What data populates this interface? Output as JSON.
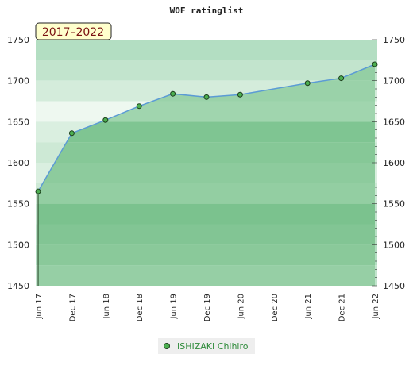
{
  "chart_data": {
    "type": "line",
    "title": "WOF ratinglist",
    "period_label": "2017–2022",
    "x": [
      "Jun 17",
      "Dec 17",
      "Jun 18",
      "Dec 18",
      "Jun 19",
      "Dec 19",
      "Jun 20",
      "Dec 20",
      "Jun 21",
      "Dec 21",
      "Jun 22"
    ],
    "series": [
      {
        "name": "ISHIZAKI Chihiro",
        "points": [
          {
            "x": "Jun 17",
            "y": 1565
          },
          {
            "x": "Dec 17",
            "y": 1636
          },
          {
            "x": "Jun 18",
            "y": 1652
          },
          {
            "x": "Dec 18",
            "y": 1669
          },
          {
            "x": "Jun 19",
            "y": 1684
          },
          {
            "x": "Dec 19",
            "y": 1680
          },
          {
            "x": "Jun 20",
            "y": 1683
          },
          {
            "x": "Jun 21",
            "y": 1697
          },
          {
            "x": "Dec 21",
            "y": 1703
          },
          {
            "x": "Jun 22",
            "y": 1720
          }
        ]
      }
    ],
    "y_ticks": [
      1450,
      1500,
      1550,
      1600,
      1650,
      1700,
      1750
    ],
    "ylim": [
      1450,
      1750
    ],
    "legend_position": "bottom",
    "colors": {
      "line": "#5b9bd5",
      "marker_fill": "#4caf50",
      "marker_stroke": "#1b3d1b",
      "legend_text": "#2e8b3a",
      "period_box_fill": "#ffffcc",
      "period_text": "#7a1010"
    }
  }
}
